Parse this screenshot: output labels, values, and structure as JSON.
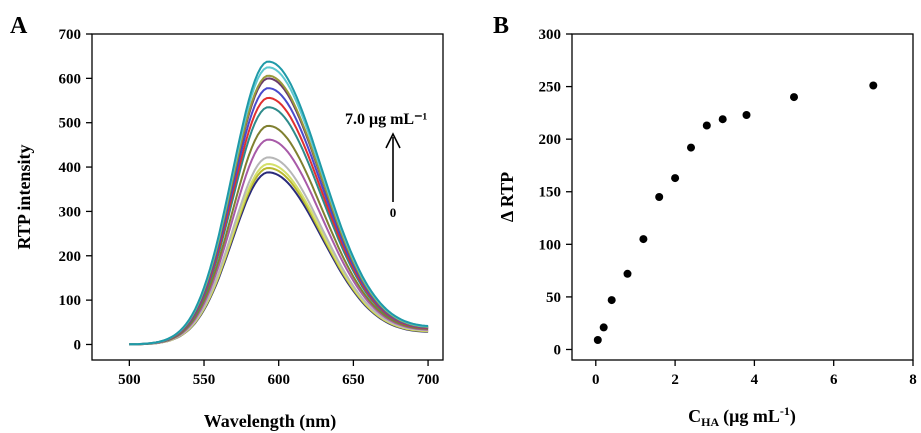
{
  "chart_data": [
    {
      "panel": "A",
      "type": "line",
      "xlabel": "Wavelength (nm)",
      "ylabel": "RTP intensity",
      "xlim": [
        475,
        710
      ],
      "ylim": [
        -35,
        700
      ],
      "xticks": [
        500,
        550,
        600,
        650,
        700
      ],
      "yticks": [
        0,
        100,
        200,
        300,
        400,
        500,
        600,
        700
      ],
      "grid": false,
      "annotation": {
        "top": "7.0 μg mL⁻¹",
        "bottom": "0"
      },
      "peak_wavelength": 593,
      "series": [
        {
          "color": "#2a2a7a",
          "peak": 388,
          "tail": 24
        },
        {
          "color": "#b9b92e",
          "peak": 398,
          "tail": 25
        },
        {
          "color": "#d4e06a",
          "peak": 407,
          "tail": 26
        },
        {
          "color": "#b7b7b7",
          "peak": 422,
          "tail": 27
        },
        {
          "color": "#a85aa8",
          "peak": 462,
          "tail": 28
        },
        {
          "color": "#808030",
          "peak": 493,
          "tail": 29
        },
        {
          "color": "#2e8b8b",
          "peak": 535,
          "tail": 30
        },
        {
          "color": "#e03030",
          "peak": 556,
          "tail": 30
        },
        {
          "color": "#4a4acc",
          "peak": 578,
          "tail": 31
        },
        {
          "color": "#6a3a6a",
          "peak": 600,
          "tail": 32
        },
        {
          "color": "#9a9a3a",
          "peak": 606,
          "tail": 32
        },
        {
          "color": "#5ec8d0",
          "peak": 625,
          "tail": 33
        },
        {
          "color": "#1f9aa8",
          "peak": 638,
          "tail": 34
        }
      ]
    },
    {
      "panel": "B",
      "type": "scatter",
      "xlabel": "C",
      "xlabel_sub": "HA",
      "xlabel_unit": "(μg mL",
      "xlabel_sup": "-1",
      "xlabel_close": ")",
      "ylabel": "Δ RTP",
      "xlim": [
        -0.6,
        8
      ],
      "ylim": [
        -10,
        300
      ],
      "xticks": [
        0,
        2,
        4,
        6,
        8
      ],
      "yticks": [
        0,
        50,
        100,
        150,
        200,
        250,
        300
      ],
      "grid": false,
      "points": [
        {
          "x": 0.05,
          "y": 9
        },
        {
          "x": 0.2,
          "y": 21
        },
        {
          "x": 0.4,
          "y": 47
        },
        {
          "x": 0.8,
          "y": 72
        },
        {
          "x": 1.2,
          "y": 105
        },
        {
          "x": 1.6,
          "y": 145
        },
        {
          "x": 2.0,
          "y": 163
        },
        {
          "x": 2.4,
          "y": 192
        },
        {
          "x": 2.8,
          "y": 213
        },
        {
          "x": 3.2,
          "y": 219
        },
        {
          "x": 3.8,
          "y": 223
        },
        {
          "x": 5.0,
          "y": 240
        },
        {
          "x": 7.0,
          "y": 251
        }
      ]
    }
  ]
}
